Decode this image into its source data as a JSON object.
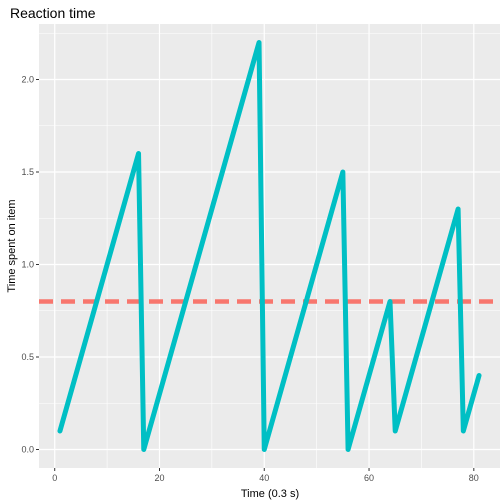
{
  "chart_data": {
    "type": "line",
    "title": "Reaction time",
    "xlabel": "Time (0.3 s)",
    "ylabel": "Time spent on item",
    "xlim": [
      -3,
      85
    ],
    "ylim": [
      -0.1,
      2.3
    ],
    "x_ticks": [
      0,
      20,
      40,
      60,
      80
    ],
    "y_ticks": [
      0.0,
      0.5,
      1.0,
      1.5,
      2.0
    ],
    "y_tick_labels": [
      "0.0",
      "0.5",
      "1.0",
      "1.5",
      "2.0"
    ],
    "grid": true,
    "series": [
      {
        "color": "#00BFC4",
        "x": [
          1,
          16,
          17,
          39,
          40,
          55,
          56,
          64,
          65,
          77,
          78,
          81
        ],
        "y": [
          0.1,
          1.6,
          0.0,
          2.2,
          0.0,
          1.5,
          0.0,
          0.8,
          0.1,
          1.3,
          0.1,
          0.4
        ]
      }
    ],
    "reference_line": {
      "type": "horizontal",
      "y": 0.8,
      "color": "#F8766D",
      "dashed": true
    }
  },
  "colors": {
    "panel_background": "#EBEBEB",
    "grid_color": "#FFFFFF"
  }
}
